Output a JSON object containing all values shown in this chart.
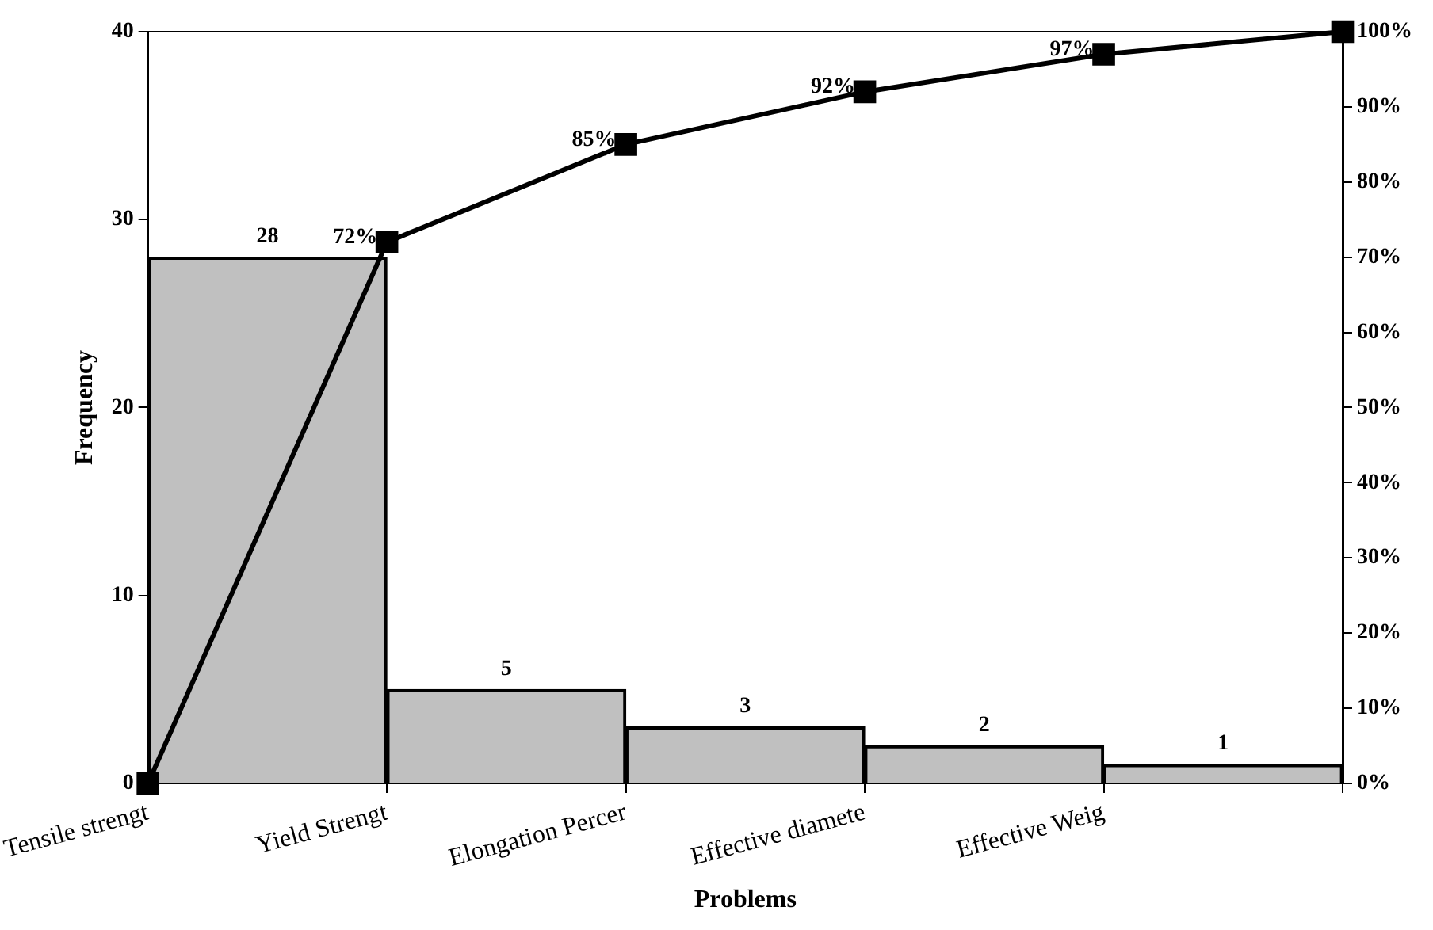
{
  "chart_data": {
    "type": "bar",
    "xlabel": "Problems",
    "ylabel": "Frequency",
    "categories": [
      "Tensile strengt",
      "Yield Strengt",
      "Elongation Percer",
      "Effective diamete",
      "Effective Weig",
      null
    ],
    "series": [
      {
        "color": "#c0c0c0",
        "values": [
          28,
          5,
          3,
          2,
          1,
          null
        ],
        "value_labels": [
          "28",
          "5",
          "3",
          "2",
          "1",
          null
        ]
      },
      {
        "type": "line",
        "axis": "y2",
        "color": "#000000",
        "marker": "square",
        "values": [
          0,
          72,
          85,
          92,
          97,
          100
        ],
        "value_labels": [
          null,
          "72%",
          "85%",
          "92%",
          "97%",
          null
        ]
      }
    ],
    "ylim": [
      0,
      40
    ],
    "yticks": [
      0,
      10,
      20,
      30,
      40
    ],
    "y2lim": [
      0,
      100
    ],
    "y2ticks": [
      {
        "value": 0,
        "label": "0%"
      },
      {
        "value": 10,
        "label": "10%"
      },
      {
        "value": 20,
        "label": "20%"
      },
      {
        "value": 30,
        "label": "30%"
      },
      {
        "value": 40,
        "label": "40%"
      },
      {
        "value": 50,
        "label": "50%"
      },
      {
        "value": 60,
        "label": "60%"
      },
      {
        "value": 70,
        "label": "70%"
      },
      {
        "value": 80,
        "label": "80%"
      },
      {
        "value": 90,
        "label": "90%"
      },
      {
        "value": 100,
        "label": "100%"
      }
    ],
    "grid": false,
    "legend": false
  }
}
